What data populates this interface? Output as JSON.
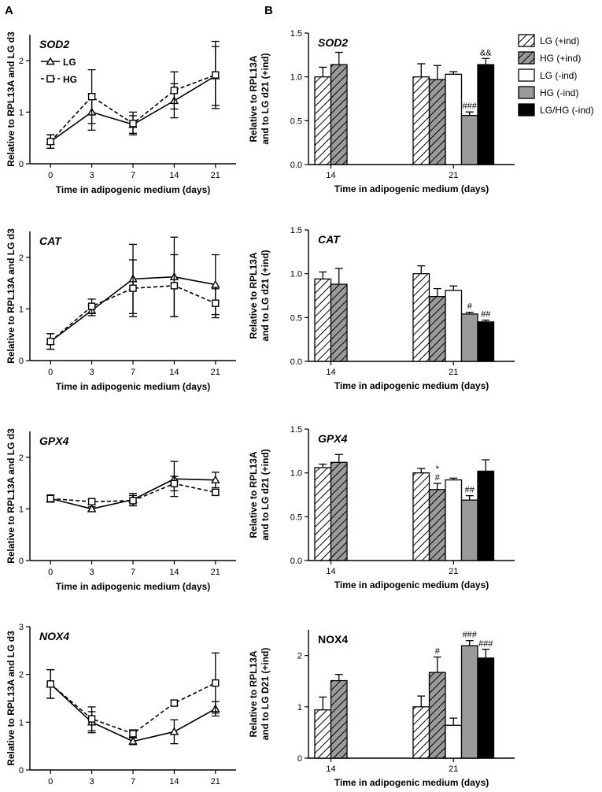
{
  "panel_labels": {
    "a": "A",
    "b": "B"
  },
  "legend_a": {
    "lg": "LG",
    "hg": "HG"
  },
  "legend_b": [
    "LG (+ind)",
    "HG (+ind)",
    "LG (-ind)",
    "HG (-ind)",
    "LG/HG (-ind)"
  ],
  "chart_data": [
    {
      "type": "line",
      "panel": "A",
      "gene": "SOD2",
      "x": [
        "0",
        "3",
        "7",
        "14",
        "21"
      ],
      "xlabel": "Time in adipogenic medium (days)",
      "ylabel": "Relative to RPL13A and LG d3",
      "ylim": [
        0,
        2.5
      ],
      "yticks": [
        "0",
        "1",
        "2"
      ],
      "series": [
        {
          "name": "LG",
          "values": [
            0.43,
            1.0,
            0.76,
            1.22,
            1.7
          ],
          "errors": [
            0.13,
            0.35,
            0.17,
            0.33,
            0.57
          ]
        },
        {
          "name": "HG",
          "values": [
            0.43,
            1.3,
            0.78,
            1.42,
            1.72
          ],
          "errors": [
            0.13,
            0.52,
            0.22,
            0.36,
            0.65
          ]
        }
      ]
    },
    {
      "type": "line",
      "panel": "A",
      "gene": "CAT",
      "x": [
        "0",
        "3",
        "7",
        "14",
        "21"
      ],
      "xlabel": "Time in adipogenic medium (days)",
      "ylabel": "Relative to RPL13A and LG d3",
      "ylim": [
        0,
        2.5
      ],
      "yticks": [
        "0",
        "1",
        "2"
      ],
      "series": [
        {
          "name": "LG",
          "values": [
            0.37,
            0.97,
            1.58,
            1.62,
            1.47
          ],
          "errors": [
            0.15,
            0.1,
            0.67,
            0.77,
            0.58
          ]
        },
        {
          "name": "HG",
          "values": [
            0.37,
            1.05,
            1.4,
            1.45,
            1.11
          ],
          "errors": [
            0.15,
            0.14,
            0.55,
            0.6,
            0.28
          ]
        }
      ]
    },
    {
      "type": "line",
      "panel": "A",
      "gene": "GPX4",
      "x": [
        "0",
        "3",
        "7",
        "14",
        "21"
      ],
      "xlabel": "Time in adipogenic medium (days)",
      "ylabel": "Relative to RPL13A and LG d3",
      "ylim": [
        0,
        2.5
      ],
      "yticks": [
        "0",
        "1",
        "2"
      ],
      "series": [
        {
          "name": "LG",
          "values": [
            1.2,
            1.0,
            1.18,
            1.58,
            1.56
          ],
          "errors": [
            0.07,
            0.04,
            0.12,
            0.34,
            0.15
          ]
        },
        {
          "name": "HG",
          "values": [
            1.2,
            1.14,
            1.16,
            1.49,
            1.32
          ],
          "errors": [
            0.07,
            0.05,
            0.1,
            0.14,
            0.06
          ]
        }
      ]
    },
    {
      "type": "line",
      "panel": "A",
      "gene": "NOX4",
      "x": [
        "0",
        "3",
        "7",
        "14",
        "21"
      ],
      "xlabel": "Time in adipogenic medium (days)",
      "ylabel": "Relative to RPL13A and LG d3",
      "ylim": [
        0,
        3
      ],
      "yticks": [
        "0",
        "1",
        "2",
        "3"
      ],
      "series": [
        {
          "name": "LG",
          "values": [
            1.8,
            1.0,
            0.6,
            0.8,
            1.28
          ],
          "errors": [
            0.3,
            0.22,
            0.07,
            0.25,
            0.15
          ]
        },
        {
          "name": "HG",
          "values": [
            1.8,
            1.07,
            0.76,
            1.4,
            1.82
          ],
          "errors": [
            0.3,
            0.25,
            0.08,
            0.05,
            0.63
          ]
        }
      ]
    },
    {
      "type": "bar",
      "panel": "B",
      "gene": "SOD2",
      "categories": [
        "14",
        "21"
      ],
      "xlabel": "Time in adipogenic medium (days)",
      "ylabel": [
        "Relative to RPL13A",
        "and to LG d21 (+ind)"
      ],
      "ylim": [
        0,
        1.5
      ],
      "yticks": [
        "0.0",
        "0.5",
        "1.0",
        "1.5"
      ],
      "series": [
        {
          "name": "LG (+ind)",
          "values": [
            1.0,
            1.0
          ],
          "errors": [
            0.11,
            0.15
          ]
        },
        {
          "name": "HG (+ind)",
          "values": [
            1.14,
            0.97
          ],
          "errors": [
            0.14,
            0.16
          ]
        },
        {
          "name": "LG (-ind)",
          "values": [
            null,
            1.03
          ],
          "errors": [
            null,
            0.03
          ]
        },
        {
          "name": "HG (-ind)",
          "values": [
            null,
            0.56
          ],
          "errors": [
            null,
            0.04
          ]
        },
        {
          "name": "LG/HG (-ind)",
          "values": [
            null,
            1.14
          ],
          "errors": [
            null,
            0.07
          ]
        }
      ],
      "annotations": [
        {
          "series": "HG (-ind)",
          "category": "21",
          "text": "###"
        },
        {
          "series": "LG/HG (-ind)",
          "category": "21",
          "text": "&&"
        }
      ]
    },
    {
      "type": "bar",
      "panel": "B",
      "gene": "CAT",
      "categories": [
        "14",
        "21"
      ],
      "xlabel": "Time in adipogenic medium (days)",
      "ylabel": [
        "Relative to RPL13A",
        "and to LG d21 (+ind)"
      ],
      "ylim": [
        0,
        1.5
      ],
      "yticks": [
        "0.0",
        "0.5",
        "1.0",
        "1.5"
      ],
      "series": [
        {
          "name": "LG (+ind)",
          "values": [
            0.94,
            1.0
          ],
          "errors": [
            0.08,
            0.09
          ]
        },
        {
          "name": "HG (+ind)",
          "values": [
            0.88,
            0.74
          ],
          "errors": [
            0.18,
            0.09
          ]
        },
        {
          "name": "LG (-ind)",
          "values": [
            null,
            0.81
          ],
          "errors": [
            null,
            0.05
          ]
        },
        {
          "name": "HG (-ind)",
          "values": [
            null,
            0.54
          ],
          "errors": [
            null,
            0.02
          ]
        },
        {
          "name": "LG/HG (-ind)",
          "values": [
            null,
            0.45
          ],
          "errors": [
            null,
            0.02
          ]
        }
      ],
      "annotations": [
        {
          "series": "HG (-ind)",
          "category": "21",
          "text": "#"
        },
        {
          "series": "LG/HG (-ind)",
          "category": "21",
          "text": "##"
        }
      ]
    },
    {
      "type": "bar",
      "panel": "B",
      "gene": "GPX4",
      "categories": [
        "14",
        "21"
      ],
      "xlabel": "Time in adipogenic medium (days)",
      "ylabel": [
        "Relative to RPL13A",
        "and to LG d21 (+ind)"
      ],
      "ylim": [
        0,
        1.5
      ],
      "yticks": [
        "0.0",
        "0.5",
        "1.0",
        "1.5"
      ],
      "series": [
        {
          "name": "LG (+ind)",
          "values": [
            1.06,
            1.0
          ],
          "errors": [
            0.04,
            0.05
          ]
        },
        {
          "name": "HG (+ind)",
          "values": [
            1.12,
            0.81
          ],
          "errors": [
            0.09,
            0.07
          ]
        },
        {
          "name": "LG (-ind)",
          "values": [
            null,
            0.92
          ],
          "errors": [
            null,
            0.02
          ]
        },
        {
          "name": "HG (-ind)",
          "values": [
            null,
            0.69
          ],
          "errors": [
            null,
            0.05
          ]
        },
        {
          "name": "LG/HG (-ind)",
          "values": [
            null,
            1.02
          ],
          "errors": [
            null,
            0.13
          ]
        }
      ],
      "annotations": [
        {
          "series": "HG (+ind)",
          "category": "21",
          "text": "#"
        },
        {
          "series": "HG (+ind)",
          "category": "21",
          "text": "*"
        },
        {
          "series": "HG (-ind)",
          "category": "21",
          "text": "##"
        }
      ]
    },
    {
      "type": "bar",
      "panel": "B",
      "gene": "NOX4",
      "categories": [
        "14",
        "21"
      ],
      "xlabel": "Time in adipogenic medium (days)",
      "ylabel": [
        "Relative to RPL13A",
        "and to LG D21 (+ind)"
      ],
      "ylim": [
        0,
        2.5
      ],
      "yticks": [
        "0",
        "1",
        "2"
      ],
      "series": [
        {
          "name": "LG (+ind)",
          "values": [
            0.94,
            1.0
          ],
          "errors": [
            0.25,
            0.21
          ]
        },
        {
          "name": "HG (+ind)",
          "values": [
            1.51,
            1.67
          ],
          "errors": [
            0.12,
            0.3
          ]
        },
        {
          "name": "LG (-ind)",
          "values": [
            null,
            0.64
          ],
          "errors": [
            null,
            0.14
          ]
        },
        {
          "name": "HG (-ind)",
          "values": [
            null,
            2.19
          ],
          "errors": [
            null,
            0.1
          ]
        },
        {
          "name": "LG/HG (-ind)",
          "values": [
            null,
            1.95
          ],
          "errors": [
            null,
            0.17
          ]
        }
      ],
      "annotations": [
        {
          "series": "HG (+ind)",
          "category": "21",
          "text": "#"
        },
        {
          "series": "HG (-ind)",
          "category": "21",
          "text": "###"
        },
        {
          "series": "LG/HG (-ind)",
          "category": "21",
          "text": "###"
        }
      ]
    }
  ]
}
